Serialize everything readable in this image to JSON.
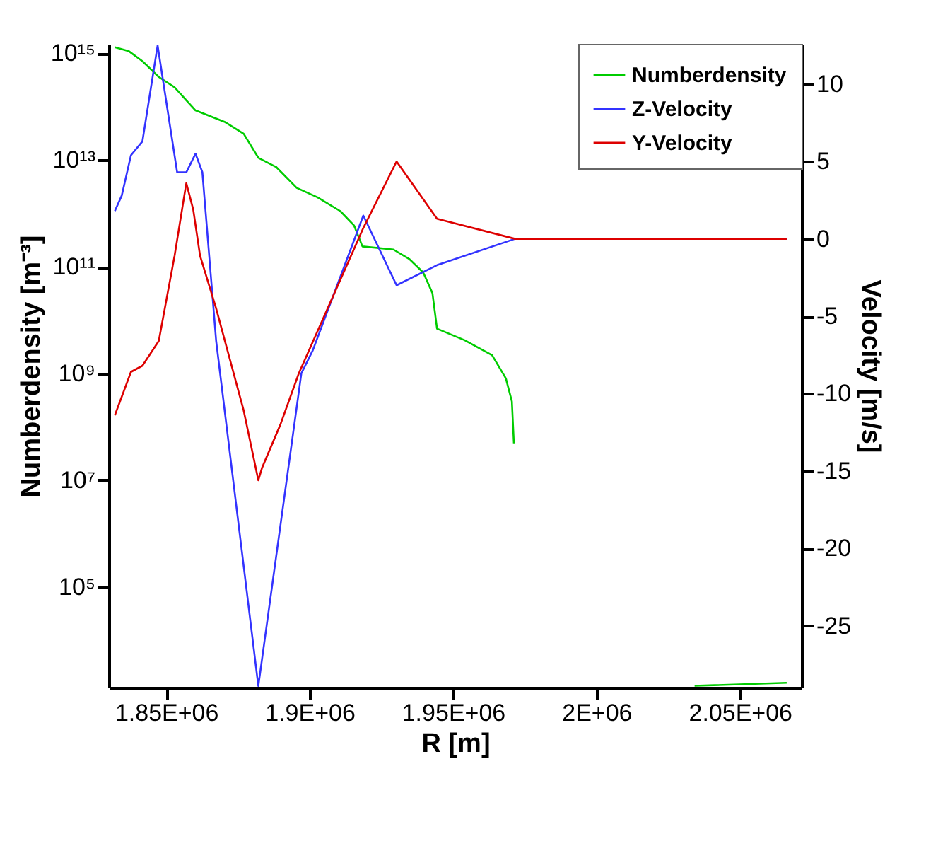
{
  "chart_data": {
    "type": "line",
    "xlabel": "R [m]",
    "ylabel": "Numberdensity [m⁻³]",
    "y2label": "Velocity [m/s]",
    "log": "y",
    "legend": "top right",
    "xlim": [
      1830000,
      2071500
    ],
    "xticks": [
      {
        "value": 1850000,
        "label": "1.85E+06"
      },
      {
        "value": 1900000,
        "label": "1.9E+06"
      },
      {
        "value": 1950000,
        "label": "1.95E+06"
      },
      {
        "value": 2000000,
        "label": "2E+06"
      },
      {
        "value": 2050000,
        "label": "2.05E+06"
      }
    ],
    "ylim": [
      1300,
      1500000000000000.0
    ],
    "yticks": [
      {
        "value": 100000.0,
        "label": "10⁵"
      },
      {
        "value": 10000000.0,
        "label": "10⁷"
      },
      {
        "value": 1000000000.0,
        "label": "10⁹"
      },
      {
        "value": 100000000000.0,
        "label": "10¹¹"
      },
      {
        "value": 10000000000000.0,
        "label": "10¹³"
      },
      {
        "value": 1000000000000000.0,
        "label": "10¹⁵"
      }
    ],
    "y2lim": [
      -29,
      12.6
    ],
    "y2ticks": [
      -25,
      -20,
      -15,
      -10,
      -5,
      0,
      5,
      10
    ],
    "series": [
      {
        "name": "Numberdensity",
        "color": "#00cc00",
        "x": [
          1832100,
          1836900,
          1841700,
          1847400,
          1852900,
          1860200,
          1870600,
          1877000,
          1882100,
          1888300,
          1895500,
          1902700,
          1910700,
          1915500,
          1918400,
          1929200,
          1934700,
          1939600,
          1942800,
          1944400,
          1954000,
          1963600,
          1968400,
          1970500,
          1971200,
          1972000,
          2000000,
          2034200,
          2066300
        ],
        "values": [
          1300000000000000.0,
          1100000000000000.0,
          710000000000000.0,
          360000000000000.0,
          230000000000000.0,
          85000000000000.0,
          51000000000000.0,
          31000000000000.0,
          11000000000000.0,
          7400000000000.0,
          3000000000000.0,
          2000000000000.0,
          1100000000000.0,
          590000000000.0,
          240000000000.0,
          210000000000.0,
          140000000000.0,
          78000000000.0,
          32000000000.0,
          6900000000.0,
          4200000000.0,
          2200000000.0,
          810000000.0,
          300000000.0,
          49000000.0,
          null,
          null,
          1400,
          1600
        ]
      },
      {
        "name": "Z-Velocity",
        "color": "#3333ff",
        "axis": "y2",
        "x": [
          1832100,
          1834500,
          1837700,
          1841700,
          1847000,
          1853800,
          1857000,
          1860200,
          1862600,
          1867400,
          1882100,
          1897100,
          1901100,
          1918700,
          1930300,
          1944400,
          1971600,
          2066300
        ],
        "values": [
          1.8,
          2.8,
          5.4,
          6.3,
          12.5,
          4.3,
          4.3,
          5.5,
          4.3,
          -6.6,
          -28.9,
          -8.7,
          -7.2,
          1.5,
          -3,
          -1.7,
          0,
          0
        ]
      },
      {
        "name": "Y-Velocity",
        "color": "#dd0000",
        "axis": "y2",
        "x": [
          1832100,
          1837700,
          1841700,
          1847400,
          1852900,
          1857000,
          1859400,
          1861800,
          1867400,
          1877000,
          1882100,
          1883400,
          1889800,
          1896200,
          1918700,
          1930300,
          1944400,
          1971600,
          2066300
        ],
        "values": [
          -11.4,
          -8.6,
          -8.2,
          -6.6,
          -1.1,
          3.6,
          1.9,
          -1.1,
          -4.5,
          -11.1,
          -15.6,
          -14.8,
          -12,
          -8.7,
          0.7,
          5,
          1.3,
          0,
          0
        ]
      }
    ]
  }
}
